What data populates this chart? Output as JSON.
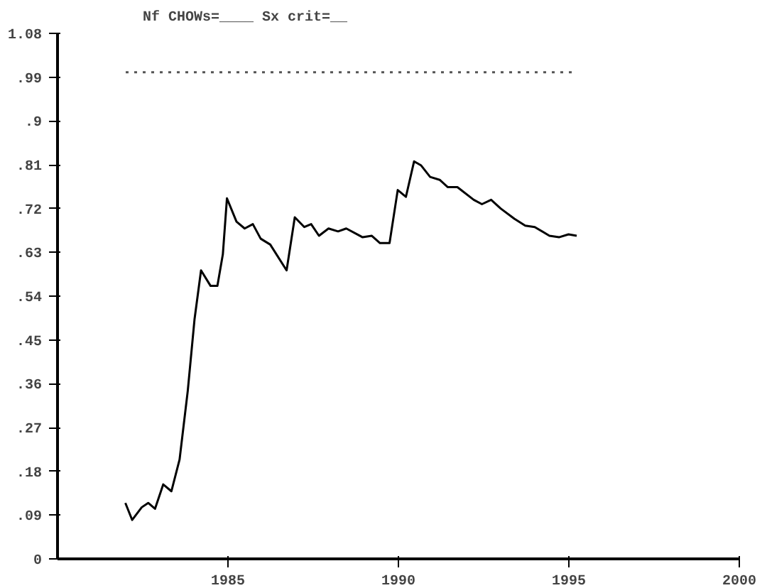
{
  "chart_data": {
    "type": "line",
    "title": "Nf CHOWs=____   Sx crit=__",
    "xlim": [
      1980,
      2000
    ],
    "xticks": [
      1985,
      1990,
      1995,
      2000
    ],
    "ylim": [
      0,
      1.08
    ],
    "yticks": [
      {
        "value": 0,
        "label": "0"
      },
      {
        "value": 0.09,
        "label": ".09"
      },
      {
        "value": 0.18,
        "label": ".18"
      },
      {
        "value": 0.27,
        "label": ".27"
      },
      {
        "value": 0.36,
        "label": ".36"
      },
      {
        "value": 0.45,
        "label": ".45"
      },
      {
        "value": 0.54,
        "label": ".54"
      },
      {
        "value": 0.63,
        "label": ".63"
      },
      {
        "value": 0.72,
        "label": ".72"
      },
      {
        "value": 0.81,
        "label": ".81"
      },
      {
        "value": 0.9,
        "label": ".9"
      },
      {
        "value": 0.99,
        "label": ".99"
      },
      {
        "value": 1.08,
        "label": "1.08"
      }
    ],
    "grid": false,
    "marker": "none",
    "series": [
      {
        "color": "#000000",
        "line_style": "solid",
        "x": [
          1981.99,
          1982.19,
          1982.47,
          1982.66,
          1982.86,
          1983.1,
          1983.34,
          1983.58,
          1983.82,
          1984.02,
          1984.21,
          1984.49,
          1984.69,
          1984.85,
          1984.97,
          1985.25,
          1985.49,
          1985.73,
          1985.96,
          1986.24,
          1986.72,
          1986.96,
          1987.24,
          1987.44,
          1987.67,
          1987.95,
          1988.23,
          1988.47,
          1988.95,
          1989.22,
          1989.46,
          1989.74,
          1989.98,
          1990.22,
          1990.46,
          1990.66,
          1990.93,
          1991.21,
          1991.45,
          1991.73,
          1992.21,
          1992.45,
          1992.72,
          1993.0,
          1993.4,
          1993.72,
          1994.0,
          1994.43,
          1994.71,
          1994.99,
          1995.23
        ],
        "values": [
          0.115,
          0.08,
          0.106,
          0.115,
          0.103,
          0.153,
          0.139,
          0.204,
          0.345,
          0.493,
          0.593,
          0.561,
          0.561,
          0.626,
          0.741,
          0.693,
          0.679,
          0.688,
          0.658,
          0.646,
          0.593,
          0.702,
          0.682,
          0.688,
          0.664,
          0.679,
          0.673,
          0.679,
          0.661,
          0.664,
          0.649,
          0.649,
          0.758,
          0.744,
          0.817,
          0.809,
          0.785,
          0.779,
          0.764,
          0.764,
          0.738,
          0.729,
          0.738,
          0.72,
          0.699,
          0.685,
          0.682,
          0.664,
          0.661,
          0.667,
          0.664
        ]
      },
      {
        "color": "#555555",
        "line_style": "dotted",
        "x": [
          1982.0,
          1995.1
        ],
        "values": [
          1.0,
          1.0
        ]
      }
    ]
  }
}
